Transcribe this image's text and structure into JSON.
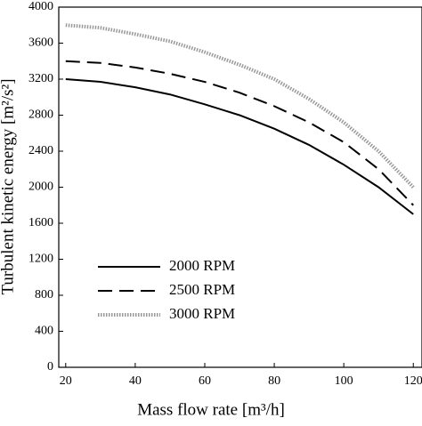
{
  "chart_data": {
    "type": "line",
    "xlabel": "Mass flow rate [m³/h]",
    "ylabel": "Turbulent kinetic energy [m²/s²]",
    "x": [
      20,
      30,
      40,
      50,
      60,
      70,
      80,
      90,
      100,
      110,
      120
    ],
    "series": [
      {
        "name": "2000 RPM",
        "color": "#000000",
        "linestyle": "solid",
        "values": [
          3200,
          3170,
          3110,
          3030,
          2920,
          2800,
          2650,
          2470,
          2250,
          2000,
          1700
        ]
      },
      {
        "name": "2500 RPM",
        "color": "#000000",
        "linestyle": "dashed",
        "values": [
          3400,
          3380,
          3330,
          3260,
          3170,
          3050,
          2900,
          2720,
          2500,
          2200,
          1800
        ]
      },
      {
        "name": "3000 RPM",
        "color": "#999999",
        "linestyle": "dotted",
        "values": [
          3800,
          3770,
          3700,
          3620,
          3500,
          3360,
          3200,
          2980,
          2720,
          2400,
          2000
        ]
      }
    ],
    "xlim": [
      18,
      122.5
    ],
    "xticks": [
      20,
      40,
      60,
      80,
      100,
      120
    ],
    "ylim": [
      0,
      4000
    ],
    "yticks": [
      0,
      400,
      800,
      1200,
      1600,
      2000,
      2400,
      2800,
      3200,
      3600,
      4000
    ],
    "legend": "lower left"
  }
}
